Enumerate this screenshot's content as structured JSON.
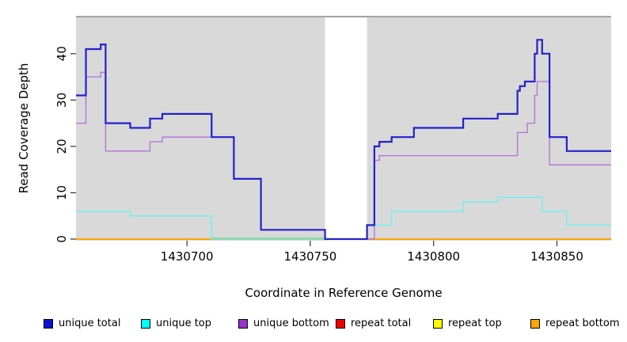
{
  "chart_data": {
    "type": "line",
    "subtype": "step",
    "title": "",
    "xlabel": "Coordinate in Reference Genome",
    "ylabel": "Read Coverage Depth",
    "xlim": [
      1430655,
      1430872
    ],
    "ylim": [
      0,
      48
    ],
    "x_end": 1430872,
    "grid": false,
    "panel_color": "#d9d9d9",
    "panel_top_border_color": "#8c8c8c",
    "masked_region": {
      "x_start": 1430756,
      "x_end": 1430773,
      "color": "#ffffff"
    },
    "overlap_blend_segment": {
      "note": "unique top at 0 overlapping repeat top (cyan+yellow blend)",
      "x_start": 1430710,
      "x_end": 1430756,
      "value": 0,
      "color": "#74d3a4"
    },
    "x_ticks": [
      {
        "value": 1430700,
        "label": "1430700"
      },
      {
        "value": 1430750,
        "label": "1430750"
      },
      {
        "value": 1430800,
        "label": "1430800"
      },
      {
        "value": 1430850,
        "label": "1430850"
      }
    ],
    "y_ticks": [
      {
        "value": 0,
        "label": "0"
      },
      {
        "value": 10,
        "label": "10"
      },
      {
        "value": 20,
        "label": "20"
      },
      {
        "value": 30,
        "label": "30"
      },
      {
        "value": 40,
        "label": "40"
      }
    ],
    "legend_position": "bottom",
    "series": [
      {
        "name": "unique total",
        "color": "#0f0fd6",
        "line_color": "#2222cc",
        "line_width": 2.2,
        "points": [
          [
            1430655,
            31
          ],
          [
            1430659,
            41
          ],
          [
            1430665,
            42
          ],
          [
            1430667,
            25
          ],
          [
            1430677,
            24
          ],
          [
            1430685,
            26
          ],
          [
            1430690,
            27
          ],
          [
            1430710,
            22
          ],
          [
            1430719,
            13
          ],
          [
            1430730,
            2
          ],
          [
            1430756,
            0
          ],
          [
            1430773,
            3
          ],
          [
            1430776,
            20
          ],
          [
            1430778,
            21
          ],
          [
            1430783,
            22
          ],
          [
            1430792,
            24
          ],
          [
            1430812,
            26
          ],
          [
            1430826,
            27
          ],
          [
            1430834,
            32
          ],
          [
            1430835,
            33
          ],
          [
            1430837,
            34
          ],
          [
            1430841,
            40
          ],
          [
            1430842,
            43
          ],
          [
            1430844,
            40
          ],
          [
            1430847,
            22
          ],
          [
            1430854,
            19
          ]
        ]
      },
      {
        "name": "unique top",
        "color": "#00ffff",
        "line_color": "#66f2f2",
        "line_width": 1.3,
        "points": [
          [
            1430655,
            6
          ],
          [
            1430677,
            5
          ],
          [
            1430710,
            0
          ],
          [
            1430773,
            3
          ],
          [
            1430783,
            6
          ],
          [
            1430812,
            8
          ],
          [
            1430826,
            9
          ],
          [
            1430844,
            6
          ],
          [
            1430854,
            3
          ]
        ]
      },
      {
        "name": "unique bottom",
        "color": "#9932cc",
        "line_color": "#b36fdc",
        "line_width": 1.3,
        "points": [
          [
            1430655,
            25
          ],
          [
            1430659,
            35
          ],
          [
            1430665,
            36
          ],
          [
            1430667,
            19
          ],
          [
            1430685,
            21
          ],
          [
            1430690,
            22
          ],
          [
            1430719,
            13
          ],
          [
            1430730,
            2
          ],
          [
            1430756,
            0
          ],
          [
            1430776,
            17
          ],
          [
            1430778,
            18
          ],
          [
            1430834,
            23
          ],
          [
            1430838,
            25
          ],
          [
            1430841,
            31
          ],
          [
            1430842,
            34
          ],
          [
            1430847,
            16
          ]
        ]
      },
      {
        "name": "repeat total",
        "color": "#ee0000",
        "line_color": "#ee0000",
        "line_width": 1,
        "points": [
          [
            1430655,
            0
          ]
        ]
      },
      {
        "name": "repeat top",
        "color": "#ffff00",
        "line_color": "#ffff00",
        "line_width": 1,
        "points": [
          [
            1430655,
            0
          ]
        ]
      },
      {
        "name": "repeat bottom",
        "color": "#ffa500",
        "line_color": "#ffa500",
        "line_width": 2,
        "points": [
          [
            1430655,
            0
          ]
        ]
      }
    ]
  }
}
